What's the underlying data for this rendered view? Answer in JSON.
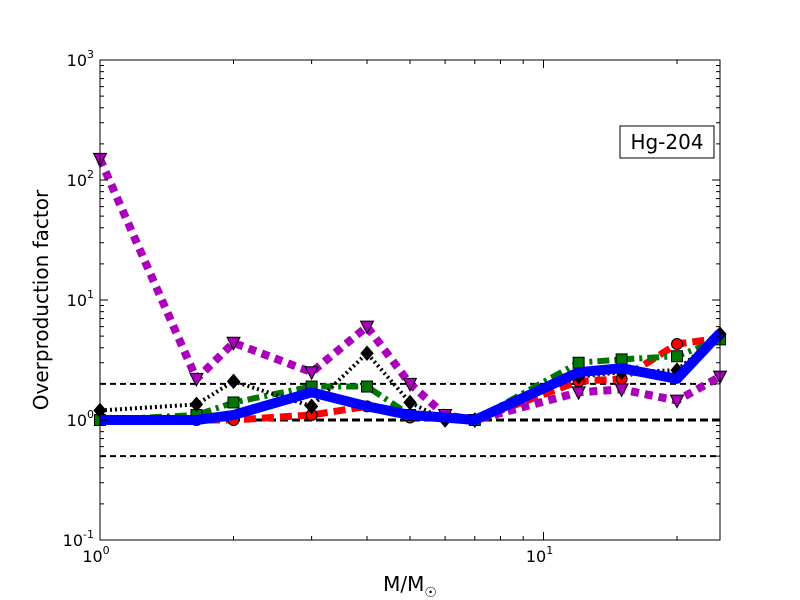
{
  "chart_data": {
    "type": "line",
    "title": "",
    "xlabel": "M/M",
    "xlabel_subscript": "☉",
    "ylabel": "Overproduction factor",
    "xscale": "log",
    "yscale": "log",
    "xlim": [
      1,
      25
    ],
    "ylim": [
      0.1,
      1000
    ],
    "grid": false,
    "x_ticks": [
      {
        "value": 1,
        "base": "10",
        "exp": "0"
      },
      {
        "value": 10,
        "base": "10",
        "exp": "1"
      }
    ],
    "y_ticks": [
      {
        "value": 0.1,
        "base": "10",
        "exp": "-1"
      },
      {
        "value": 1,
        "base": "10",
        "exp": "0"
      },
      {
        "value": 10,
        "base": "10",
        "exp": "1"
      },
      {
        "value": 100,
        "base": "10",
        "exp": "2"
      },
      {
        "value": 1000,
        "base": "10",
        "exp": "3"
      }
    ],
    "annotation": "Hg-204",
    "reference_lines": [
      {
        "y": 2,
        "color": "#000000",
        "dash": "dashed",
        "weight": "thin"
      },
      {
        "y": 1,
        "color": "#000000",
        "dash": "dashed",
        "weight": "thick"
      },
      {
        "y": 0.5,
        "color": "#000000",
        "dash": "dashed",
        "weight": "thin"
      }
    ],
    "series": [
      {
        "color": "#ff0000",
        "marker": "circle",
        "linestyle": "dashed",
        "x": [
          1,
          1.65,
          2,
          3,
          4,
          5,
          6,
          7,
          12,
          15,
          20,
          25
        ],
        "y": [
          1.0,
          1.0,
          1.0,
          1.1,
          1.3,
          1.05,
          1.05,
          1.0,
          2.1,
          2.2,
          4.3,
          4.8
        ]
      },
      {
        "color": "#007700",
        "marker": "square",
        "linestyle": "dashdot",
        "x": [
          1,
          1.65,
          2,
          3,
          4,
          5,
          6,
          7,
          12,
          15,
          20,
          25
        ],
        "y": [
          1.0,
          1.1,
          1.4,
          1.9,
          1.9,
          1.1,
          1.1,
          1.0,
          3.0,
          3.2,
          3.4,
          4.7
        ]
      },
      {
        "color": "#000000",
        "marker": "diamond",
        "linestyle": "dotted",
        "x": [
          1,
          1.65,
          2,
          3,
          4,
          5,
          6,
          7,
          12,
          15,
          20,
          25
        ],
        "y": [
          1.2,
          1.35,
          2.1,
          1.3,
          3.6,
          1.4,
          1.0,
          1.0,
          2.3,
          2.5,
          2.6,
          5.2
        ]
      },
      {
        "color": "#aa00bb",
        "marker": "triangle-down",
        "linestyle": "dotted",
        "x": [
          1,
          1.65,
          2,
          3,
          4,
          5,
          6,
          7,
          12,
          15,
          20,
          25
        ],
        "y": [
          150,
          2.2,
          4.4,
          2.5,
          6.0,
          2.0,
          1.1,
          1.0,
          1.7,
          1.8,
          1.45,
          2.3
        ]
      },
      {
        "color": "#0000ff",
        "marker": "none",
        "linestyle": "solid",
        "x": [
          1,
          1.65,
          2,
          3,
          4,
          5,
          6,
          7,
          12,
          15,
          20,
          25
        ],
        "y": [
          1.0,
          1.0,
          1.1,
          1.7,
          1.3,
          1.1,
          1.05,
          1.0,
          2.5,
          2.7,
          2.2,
          5.3
        ]
      }
    ]
  }
}
